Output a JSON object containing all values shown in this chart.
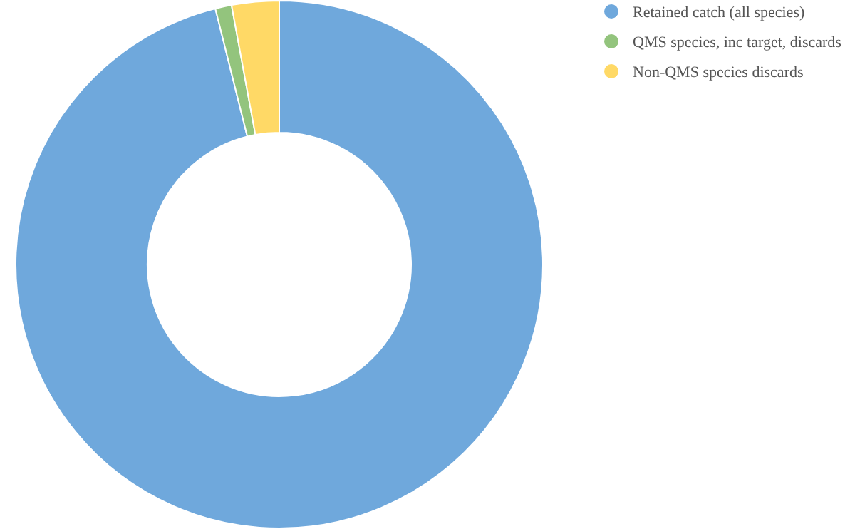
{
  "chart_data": {
    "type": "donut",
    "categories": [
      "Retained catch (all species)",
      "QMS species, inc target, discards",
      "Non-QMS species discards"
    ],
    "values": [
      96.1,
      1.0,
      2.9
    ],
    "colors": [
      "#6fa8dc",
      "#93c47d",
      "#ffd966"
    ],
    "legend": "top right"
  }
}
